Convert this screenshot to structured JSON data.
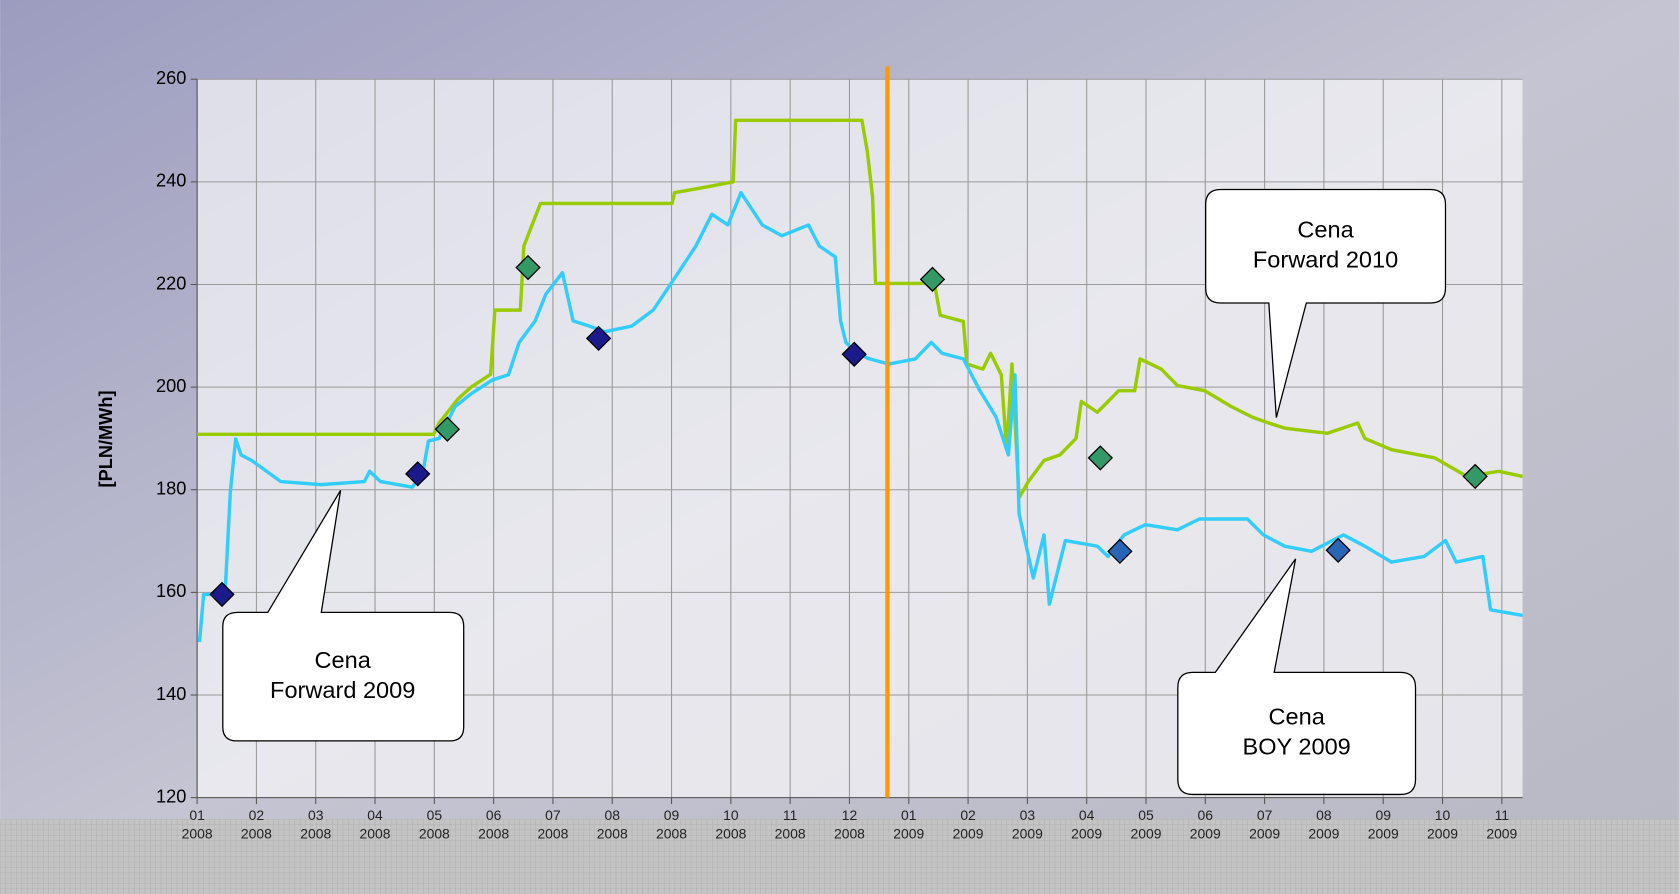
{
  "chart_data": {
    "type": "line",
    "ylabel": "[PLN/MWh]",
    "ylim": [
      120,
      260
    ],
    "yticks": [
      120,
      140,
      160,
      180,
      200,
      220,
      240,
      260
    ],
    "xlim": [
      0,
      22.35
    ],
    "xticks": [
      {
        "value": 0,
        "label": "01 2008"
      },
      {
        "value": 1,
        "label": "02 2008"
      },
      {
        "value": 2,
        "label": "03 2008"
      },
      {
        "value": 3,
        "label": "04 2008"
      },
      {
        "value": 4,
        "label": "05 2008"
      },
      {
        "value": 5,
        "label": "06 2008"
      },
      {
        "value": 6,
        "label": "07 2008"
      },
      {
        "value": 7,
        "label": "08 2008"
      },
      {
        "value": 8,
        "label": "09 2008"
      },
      {
        "value": 9,
        "label": "10 2008"
      },
      {
        "value": 10,
        "label": "11 2008"
      },
      {
        "value": 11,
        "label": "12 2008"
      },
      {
        "value": 12,
        "label": "01 2009"
      },
      {
        "value": 13,
        "label": "02 2009"
      },
      {
        "value": 14,
        "label": "03 2009"
      },
      {
        "value": 15,
        "label": "04 2009"
      },
      {
        "value": 16,
        "label": "05 2009"
      },
      {
        "value": 17,
        "label": "06 2009"
      },
      {
        "value": 18,
        "label": "07 2009"
      },
      {
        "value": 19,
        "label": "08 2009"
      },
      {
        "value": 20,
        "label": "09 2009"
      },
      {
        "value": 21,
        "label": "10 2009"
      },
      {
        "value": 22,
        "label": "11 2009"
      }
    ],
    "grid": true,
    "vline_x": 11.64,
    "vline_color": "#ff9900",
    "series": [
      {
        "style": "line",
        "color": "#99cc00",
        "x": [
          0,
          3.99,
          4.08,
          4.4,
          4.62,
          4.95,
          5.02,
          5.45,
          5.51,
          5.79,
          8.01,
          8.05,
          8.59,
          9.04,
          9.08,
          11.21,
          11.3,
          11.39,
          11.44,
          12.35,
          12.42,
          12.53,
          12.92,
          12.98,
          13.25,
          13.38,
          13.56,
          13.65,
          13.74,
          13.86,
          14.01,
          14.28,
          14.55,
          14.82,
          14.91,
          15.18,
          15.36,
          15.54,
          15.81,
          15.9,
          16.26,
          16.53,
          16.99,
          17.44,
          17.8,
          18.07,
          18.34,
          19.06,
          19.57,
          19.69,
          20.14,
          20.87,
          21.41,
          21.95,
          22.35
        ],
        "values": [
          190.8,
          190.8,
          193,
          197.7,
          200,
          202.5,
          215,
          215,
          227.5,
          235.8,
          235.8,
          237.9,
          239,
          240,
          252,
          252,
          246,
          237,
          220.2,
          220.2,
          221,
          214,
          212.8,
          204.5,
          203.5,
          206.6,
          202.4,
          187.8,
          204.5,
          178.4,
          181.5,
          185.7,
          186.8,
          190,
          197.2,
          195.1,
          197.2,
          199.3,
          199.3,
          205.5,
          203.5,
          200.3,
          199.3,
          196.2,
          194.1,
          193,
          192,
          191,
          193,
          190,
          187.8,
          186.2,
          182.6,
          183.6,
          182.6
        ]
      },
      {
        "style": "line",
        "color": "#33ccff",
        "x": [
          0.04,
          0.11,
          0.47,
          0.56,
          0.65,
          0.74,
          0.92,
          1.41,
          2.09,
          2.82,
          2.91,
          3.09,
          3.63,
          3.81,
          3.9,
          4.08,
          4.35,
          4.62,
          4.98,
          5.25,
          5.43,
          5.7,
          5.88,
          6.16,
          6.34,
          6.61,
          6.88,
          7.33,
          7.69,
          8.05,
          8.41,
          8.68,
          8.95,
          9.17,
          9.53,
          9.86,
          10.31,
          10.49,
          10.76,
          10.85,
          10.94,
          11.12,
          11.34,
          11.66,
          12.11,
          12.38,
          12.56,
          12.92,
          13.19,
          13.47,
          13.68,
          13.79,
          13.86,
          14.1,
          14.28,
          14.37,
          14.64,
          15.18,
          15.36,
          15.63,
          15.99,
          16.53,
          16.9,
          17.71,
          17.98,
          18.34,
          18.79,
          19.33,
          19.69,
          20.14,
          20.69,
          21.05,
          21.23,
          21.68,
          21.81,
          22.35
        ],
        "values": [
          150.3,
          159.6,
          159.6,
          179.5,
          189.9,
          186.8,
          185.7,
          181.6,
          181,
          181.6,
          183.6,
          181.6,
          180.5,
          183.6,
          189.5,
          190,
          196.2,
          198.7,
          201.4,
          202.4,
          208.7,
          212.9,
          218.1,
          222.3,
          212.9,
          211.9,
          210.8,
          211.9,
          215,
          221.2,
          227.5,
          233.7,
          231.6,
          237.9,
          231.6,
          229.5,
          231.6,
          227.5,
          225.4,
          212.9,
          208.7,
          206.6,
          205.5,
          204.5,
          205.5,
          208.7,
          206.6,
          205.5,
          199.5,
          194.2,
          186.8,
          202.4,
          175.3,
          162.8,
          171.2,
          157.7,
          170.1,
          169,
          167,
          171.2,
          173.2,
          172.2,
          174.3,
          174.3,
          171.2,
          169,
          168,
          171.2,
          169,
          165.9,
          167,
          170.1,
          165.9,
          167,
          156.6,
          155.5
        ]
      },
      {
        "style": "diamond",
        "color": "#339966",
        "x": [
          4.22,
          5.58,
          12.4,
          15.23,
          21.55
        ],
        "values": [
          191.8,
          223.3,
          221,
          186.2,
          182.6
        ]
      },
      {
        "style": "diamond",
        "color": "#1a1a88",
        "x": [
          0.42,
          3.72,
          6.77,
          11.08
        ],
        "values": [
          159.6,
          183.1,
          209.5,
          206.4
        ]
      },
      {
        "style": "diamond",
        "color": "#2a64b4",
        "x": [
          15.56,
          19.24
        ],
        "values": [
          168,
          168.2
        ]
      }
    ],
    "annotations": [
      {
        "lines": [
          "Cena",
          "Forward 2009"
        ]
      },
      {
        "lines": [
          "Cena",
          "Forward 2010"
        ]
      },
      {
        "lines": [
          "Cena",
          "BOY 2009"
        ]
      }
    ]
  }
}
